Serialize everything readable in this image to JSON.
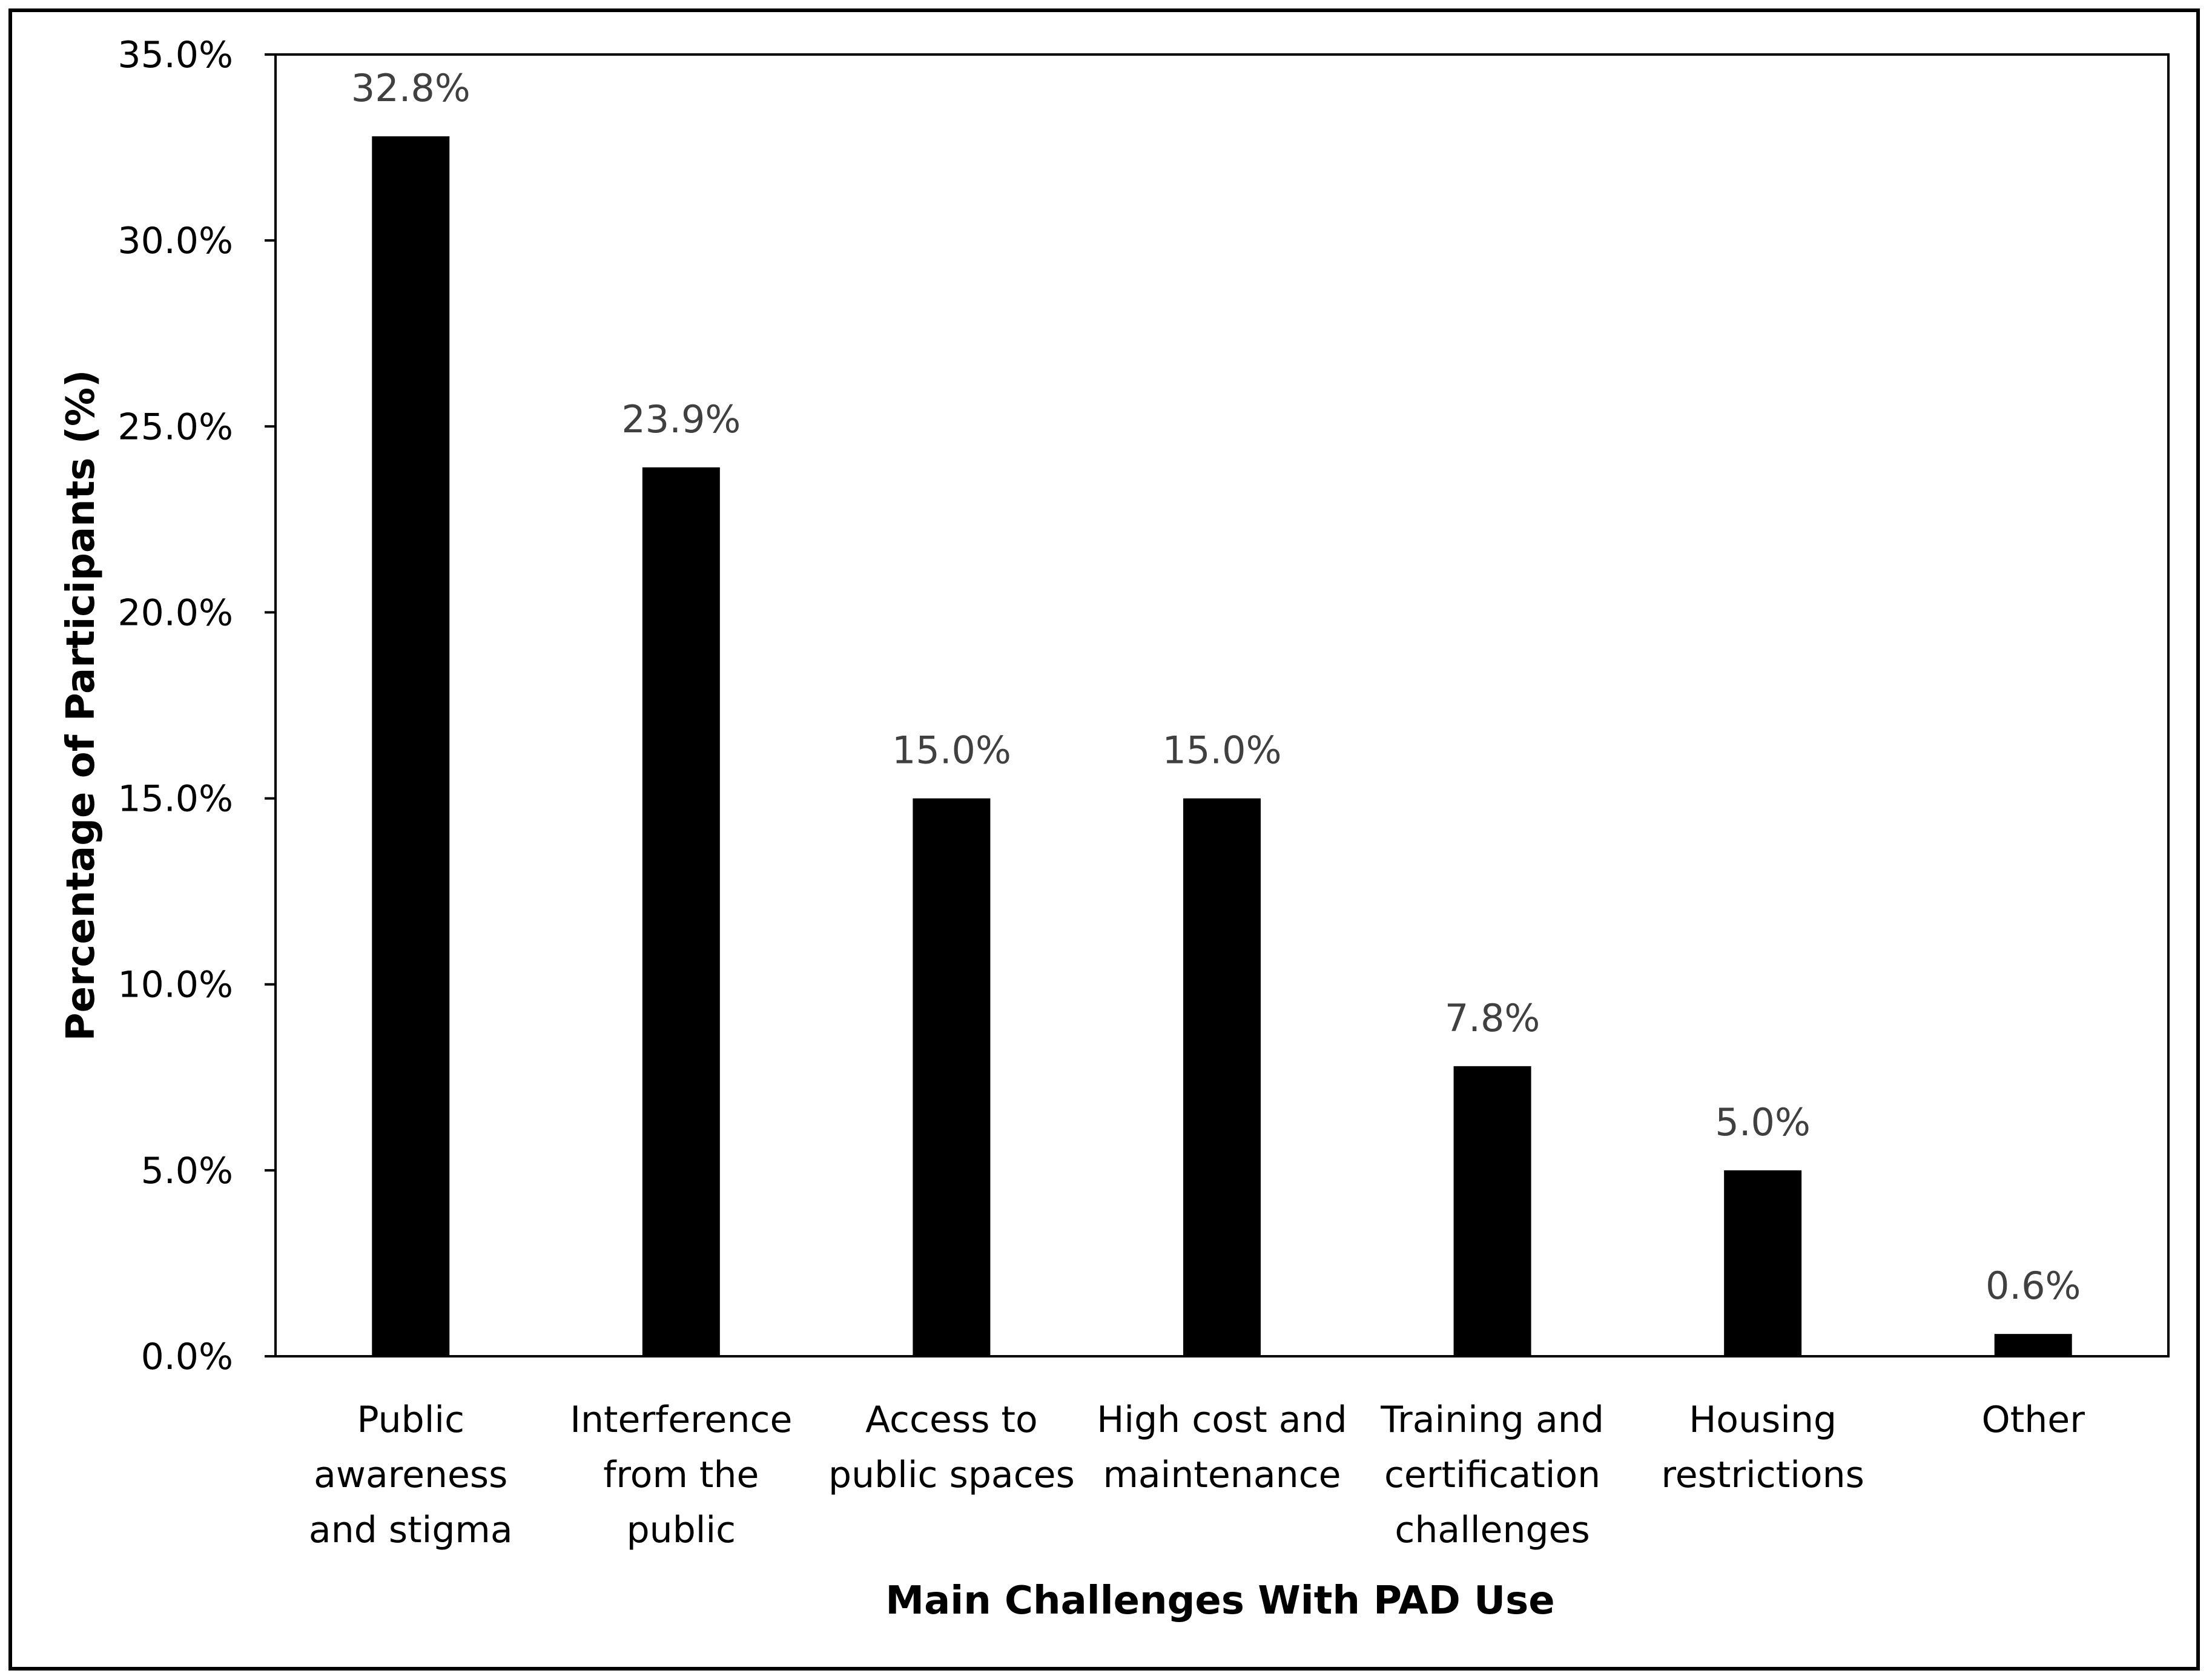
{
  "chart_data": {
    "type": "bar",
    "title": "",
    "xlabel": "Main Challenges With PAD Use",
    "ylabel": "Percentage of Participants (%)",
    "ylim": [
      0,
      35
    ],
    "yticks": [
      0,
      5,
      10,
      15,
      20,
      25,
      30,
      35
    ],
    "ytick_labels": [
      "0.0%",
      "5.0%",
      "10.0%",
      "15.0%",
      "20.0%",
      "25.0%",
      "30.0%",
      "35.0%"
    ],
    "categories": [
      [
        "Public",
        "awareness",
        "and stigma"
      ],
      [
        "Interference",
        "from the",
        "public"
      ],
      [
        "Access to",
        "public spaces"
      ],
      [
        "High cost and",
        "maintenance"
      ],
      [
        "Training and",
        "certification",
        "challenges"
      ],
      [
        "Housing",
        "restrictions"
      ],
      [
        "Other"
      ]
    ],
    "values": [
      32.8,
      23.9,
      15.0,
      15.0,
      7.8,
      5.0,
      0.6
    ],
    "data_labels": [
      "32.8%",
      "23.9%",
      "15.0%",
      "15.0%",
      "7.8%",
      "5.0%",
      "0.6%"
    ],
    "grid": false,
    "legend": "none",
    "colors": {
      "bar": "#000000",
      "data_label": "#404040",
      "axis": "#000000"
    }
  }
}
